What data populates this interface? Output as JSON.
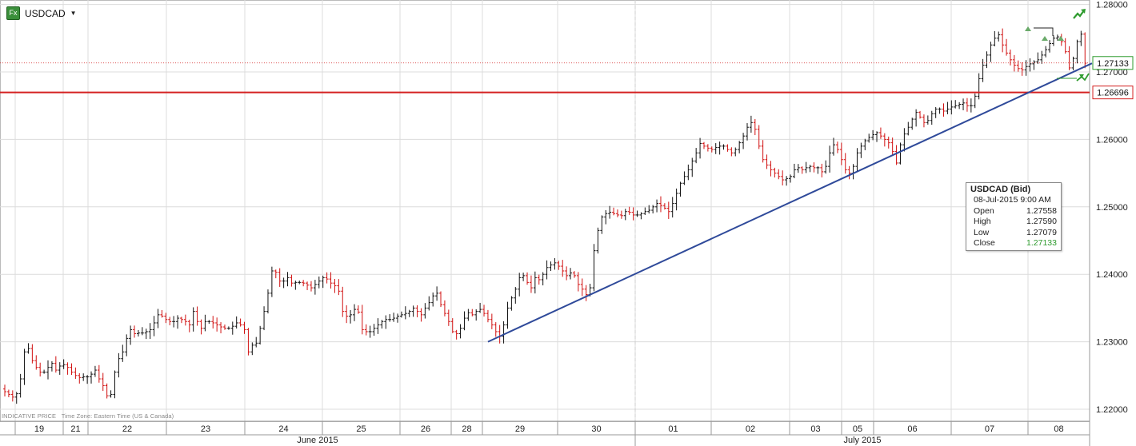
{
  "header": {
    "icon_text": "Fx",
    "symbol": "USDCAD",
    "dropdown_glyph": "▼"
  },
  "indicative": {
    "label": "INDICATIVE PRICE",
    "timezone": "Time Zone: Eastern Time (US & Canada)"
  },
  "info_box": {
    "title": "USDCAD (Bid)",
    "datetime": "08-Jul-2015 9:00 AM",
    "rows": [
      {
        "label": "Open",
        "value": "1.27558"
      },
      {
        "label": "High",
        "value": "1.27590"
      },
      {
        "label": "Low",
        "value": "1.27079"
      },
      {
        "label": "Close",
        "value": "1.27133"
      }
    ]
  },
  "colors": {
    "up": "#111111",
    "down": "#d11111",
    "support_line": "#d42020",
    "trend_line": "#2f4a9a",
    "grid": "#dcdcdc",
    "price_tag_border": "#2e9b2e"
  },
  "chart_data": {
    "type": "ohlc",
    "symbol": "USDCAD",
    "ylim": [
      1.219,
      1.28
    ],
    "yticks": [
      "1.22000",
      "1.23000",
      "1.24000",
      "1.25000",
      "1.26000",
      "1.27000",
      "1.28000"
    ],
    "day_labels": [
      "19",
      "21",
      "22",
      "23",
      "24",
      "25",
      "26",
      "28",
      "29",
      "30",
      "01",
      "02",
      "03",
      "05",
      "06",
      "07",
      "08"
    ],
    "month_labels": [
      "June 2015",
      "July 2015"
    ],
    "last_price": {
      "label": "1.27133",
      "value": 1.27133
    },
    "support": {
      "label": "1.26696",
      "value": 1.26696
    },
    "trendline": {
      "start": {
        "index": 123,
        "price": 1.23
      },
      "end": {
        "index": 272,
        "price": 1.27
      }
    },
    "closes": [
      1.2226,
      1.2222,
      1.2218,
      1.2223,
      1.2245,
      1.2285,
      1.229,
      1.2272,
      1.2262,
      1.2255,
      1.2255,
      1.2262,
      1.2268,
      1.2258,
      1.2264,
      1.2266,
      1.2262,
      1.2255,
      1.225,
      1.2247,
      1.2248,
      1.2248,
      1.2252,
      1.2258,
      1.2245,
      1.2235,
      1.222,
      1.2222,
      1.2255,
      1.2275,
      1.2285,
      1.2305,
      1.2318,
      1.2312,
      1.2313,
      1.2313,
      1.2315,
      1.2318,
      1.2328,
      1.234,
      1.2338,
      1.2333,
      1.233,
      1.233,
      1.2335,
      1.2333,
      1.233,
      1.2325,
      1.2345,
      1.233,
      1.232,
      1.233,
      1.233,
      1.2328,
      1.2325,
      1.2322,
      1.232,
      1.232,
      1.2323,
      1.2328,
      1.2325,
      1.2318,
      1.2285,
      1.2295,
      1.2298,
      1.232,
      1.2345,
      1.2372,
      1.2405,
      1.2403,
      1.239,
      1.239,
      1.2395,
      1.2387,
      1.2388,
      1.2388,
      1.2387,
      1.2384,
      1.238,
      1.2385,
      1.239,
      1.2395,
      1.2393,
      1.2387,
      1.2383,
      1.2375,
      1.2345,
      1.2338,
      1.234,
      1.2348,
      1.2344,
      1.2318,
      1.2315,
      1.2315,
      1.232,
      1.2325,
      1.233,
      1.2333,
      1.2333,
      1.2335,
      1.2338,
      1.234,
      1.2342,
      1.2345,
      1.235,
      1.2345,
      1.234,
      1.235,
      1.2358,
      1.2368,
      1.2372,
      1.2355,
      1.2342,
      1.233,
      1.2315,
      1.2312,
      1.232,
      1.2335,
      1.2343,
      1.234,
      1.2345,
      1.2348,
      1.2342,
      1.2333,
      1.2325,
      1.2315,
      1.2308,
      1.2325,
      1.235,
      1.2365,
      1.2378,
      1.2395,
      1.2398,
      1.2388,
      1.238,
      1.2395,
      1.2392,
      1.24,
      1.241,
      1.2414,
      1.2417,
      1.2412,
      1.2405,
      1.2398,
      1.2402,
      1.2398,
      1.2385,
      1.2378,
      1.237,
      1.238,
      1.2435,
      1.2465,
      1.2485,
      1.249,
      1.2492,
      1.249,
      1.2488,
      1.2487,
      1.2493,
      1.2492,
      1.2488,
      1.2488,
      1.249,
      1.2493,
      1.2495,
      1.25,
      1.2505,
      1.2502,
      1.2498,
      1.2493,
      1.2505,
      1.252,
      1.2535,
      1.2545,
      1.2555,
      1.2568,
      1.258,
      1.2594,
      1.259,
      1.2587,
      1.2585,
      1.2588,
      1.259,
      1.259,
      1.2585,
      1.258,
      1.2585,
      1.2595,
      1.2605,
      1.2618,
      1.2625,
      1.2615,
      1.259,
      1.257,
      1.2562,
      1.2555,
      1.255,
      1.2545,
      1.254,
      1.2542,
      1.2545,
      1.2555,
      1.2558,
      1.2555,
      1.2558,
      1.256,
      1.2558,
      1.2558,
      1.2552,
      1.256,
      1.258,
      1.2592,
      1.2585,
      1.257,
      1.2555,
      1.255,
      1.256,
      1.258,
      1.259,
      1.2598,
      1.2603,
      1.2607,
      1.261,
      1.2605,
      1.26,
      1.2595,
      1.2582,
      1.2565,
      1.2592,
      1.2608,
      1.2618,
      1.263,
      1.264,
      1.2633,
      1.2625,
      1.2628,
      1.2638,
      1.2645,
      1.2645,
      1.2642,
      1.2645,
      1.2648,
      1.265,
      1.2652,
      1.2654,
      1.265,
      1.265,
      1.2664,
      1.269,
      1.271,
      1.2725,
      1.274,
      1.275,
      1.2755,
      1.274,
      1.2728,
      1.2718,
      1.271,
      1.2705,
      1.2703,
      1.2708,
      1.2712,
      1.2715,
      1.2718,
      1.2725,
      1.2733,
      1.2742,
      1.275,
      1.2752,
      1.2745,
      1.273,
      1.2706,
      1.272,
      1.2745,
      1.2756,
      1.2713
    ]
  }
}
